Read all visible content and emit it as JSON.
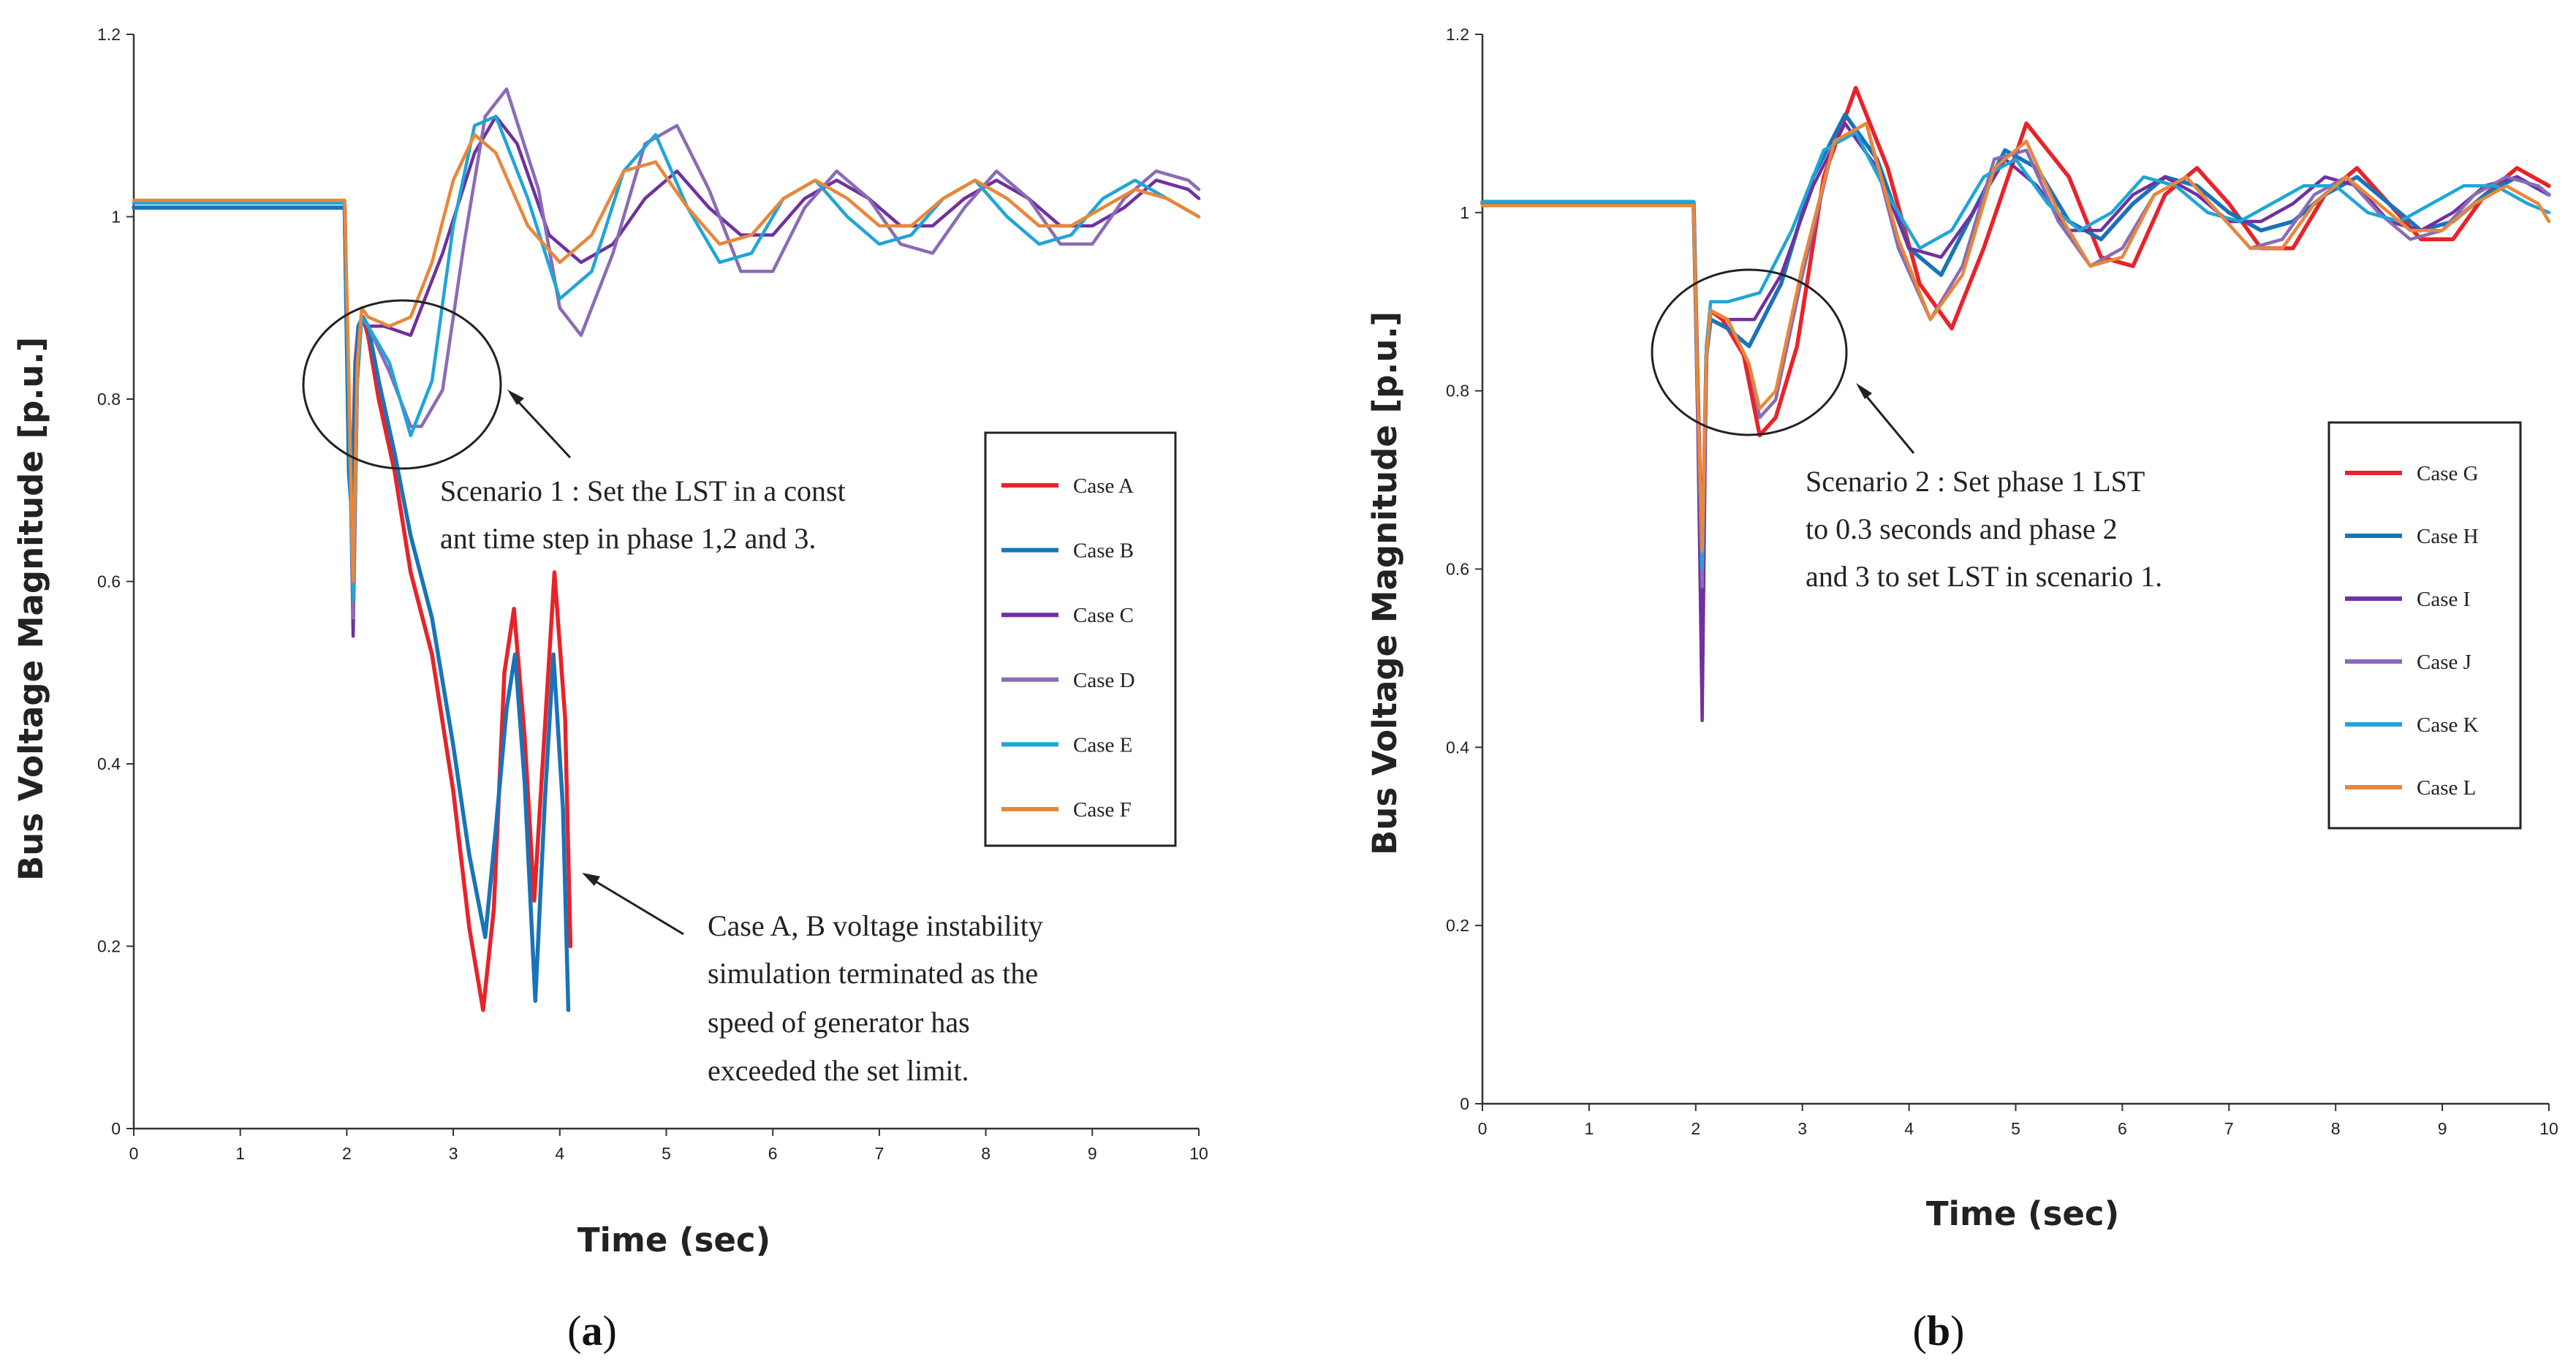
{
  "chart_data": [
    {
      "type": "line",
      "panel_label": "(a)",
      "panel_label_parts": [
        "(",
        "a",
        ")"
      ],
      "xlabel": "Time (sec)",
      "ylabel": "Bus Voltage Magnitude [p.u.]",
      "xlim": [
        0,
        10
      ],
      "ylim": [
        0,
        1.2
      ],
      "xticks": [
        0,
        1,
        2,
        3,
        4,
        5,
        6,
        7,
        8,
        9,
        10
      ],
      "yticks": [
        0,
        0.2,
        0.4,
        0.6,
        0.8,
        1,
        1.2
      ],
      "ytick_labels": [
        "0",
        "0.2",
        "0.4",
        "0.6",
        "0.8",
        "1",
        "1.2"
      ],
      "legend_position": "right",
      "series": [
        {
          "name": "Case A",
          "color": "#e8232a",
          "x": [
            0,
            1.98,
            2.02,
            2.05,
            2.08,
            2.11,
            2.15,
            2.2,
            2.3,
            2.45,
            2.6,
            2.8,
            3.0,
            3.15,
            3.28,
            3.38,
            3.48,
            3.57,
            3.67,
            3.76,
            3.85,
            3.95,
            4.05,
            4.1
          ],
          "y": [
            1.01,
            1.01,
            0.74,
            0.69,
            0.84,
            0.88,
            0.89,
            0.87,
            0.8,
            0.72,
            0.61,
            0.52,
            0.37,
            0.22,
            0.13,
            0.24,
            0.5,
            0.57,
            0.43,
            0.25,
            0.42,
            0.61,
            0.45,
            0.2
          ]
        },
        {
          "name": "Case B",
          "color": "#1a73b8",
          "x": [
            0,
            1.98,
            2.02,
            2.05,
            2.08,
            2.11,
            2.15,
            2.2,
            2.3,
            2.45,
            2.6,
            2.8,
            3.0,
            3.15,
            3.3,
            3.4,
            3.5,
            3.58,
            3.67,
            3.77,
            3.86,
            3.94,
            4.03,
            4.08
          ],
          "y": [
            1.01,
            1.01,
            0.72,
            0.67,
            0.83,
            0.88,
            0.89,
            0.88,
            0.82,
            0.74,
            0.65,
            0.56,
            0.42,
            0.3,
            0.21,
            0.33,
            0.46,
            0.52,
            0.38,
            0.14,
            0.36,
            0.52,
            0.35,
            0.13
          ]
        },
        {
          "name": "Case C",
          "color": "#7030a0",
          "x": [
            0,
            1.98,
            2.02,
            2.06,
            2.1,
            2.14,
            2.2,
            2.35,
            2.6,
            2.9,
            3.2,
            3.4,
            3.6,
            3.9,
            4.2,
            4.5,
            4.8,
            5.1,
            5.4,
            5.7,
            6.0,
            6.3,
            6.6,
            6.9,
            7.2,
            7.5,
            7.8,
            8.1,
            8.4,
            8.7,
            9.0,
            9.3,
            9.6,
            9.9,
            10.0
          ],
          "y": [
            1.015,
            1.015,
            0.8,
            0.54,
            0.82,
            0.89,
            0.88,
            0.88,
            0.87,
            0.96,
            1.07,
            1.11,
            1.08,
            0.98,
            0.95,
            0.97,
            1.02,
            1.05,
            1.01,
            0.98,
            0.98,
            1.02,
            1.04,
            1.02,
            0.99,
            0.99,
            1.02,
            1.04,
            1.02,
            0.99,
            0.99,
            1.01,
            1.04,
            1.03,
            1.02
          ]
        },
        {
          "name": "Case D",
          "color": "#8b6bb5",
          "x": [
            0,
            1.98,
            2.02,
            2.06,
            2.1,
            2.14,
            2.2,
            2.4,
            2.6,
            2.7,
            2.9,
            3.1,
            3.3,
            3.5,
            3.8,
            4.0,
            4.2,
            4.5,
            4.8,
            5.1,
            5.4,
            5.7,
            6.0,
            6.3,
            6.6,
            6.9,
            7.2,
            7.5,
            7.8,
            8.1,
            8.4,
            8.7,
            9.0,
            9.3,
            9.6,
            9.9,
            10.0
          ],
          "y": [
            1.015,
            1.015,
            0.8,
            0.56,
            0.82,
            0.89,
            0.88,
            0.83,
            0.77,
            0.77,
            0.81,
            0.97,
            1.11,
            1.14,
            1.03,
            0.9,
            0.87,
            0.96,
            1.08,
            1.1,
            1.03,
            0.94,
            0.94,
            1.01,
            1.05,
            1.02,
            0.97,
            0.96,
            1.01,
            1.05,
            1.02,
            0.97,
            0.97,
            1.02,
            1.05,
            1.04,
            1.03
          ]
        },
        {
          "name": "Case E",
          "color": "#1fa5d8",
          "x": [
            0,
            1.98,
            2.02,
            2.06,
            2.1,
            2.14,
            2.2,
            2.4,
            2.6,
            2.8,
            3.0,
            3.2,
            3.4,
            3.7,
            4.0,
            4.3,
            4.6,
            4.9,
            5.2,
            5.5,
            5.8,
            6.1,
            6.4,
            6.7,
            7.0,
            7.3,
            7.6,
            7.9,
            8.2,
            8.5,
            8.8,
            9.1,
            9.4,
            9.7,
            10.0
          ],
          "y": [
            1.015,
            1.015,
            0.78,
            0.58,
            0.82,
            0.89,
            0.88,
            0.84,
            0.76,
            0.82,
            0.99,
            1.1,
            1.11,
            1.02,
            0.91,
            0.94,
            1.05,
            1.09,
            1.01,
            0.95,
            0.96,
            1.02,
            1.04,
            1.0,
            0.97,
            0.98,
            1.02,
            1.04,
            1.0,
            0.97,
            0.98,
            1.02,
            1.04,
            1.02,
            1.0
          ]
        },
        {
          "name": "Case F",
          "color": "#e8873a",
          "x": [
            0,
            1.98,
            2.02,
            2.06,
            2.1,
            2.14,
            2.2,
            2.4,
            2.6,
            2.8,
            3.0,
            3.2,
            3.4,
            3.7,
            4.0,
            4.3,
            4.6,
            4.9,
            5.2,
            5.5,
            5.8,
            6.1,
            6.4,
            6.7,
            7.0,
            7.3,
            7.6,
            7.9,
            8.2,
            8.5,
            8.8,
            9.1,
            9.4,
            9.7,
            10.0
          ],
          "y": [
            1.018,
            1.018,
            0.82,
            0.6,
            0.84,
            0.9,
            0.89,
            0.88,
            0.89,
            0.95,
            1.04,
            1.09,
            1.07,
            0.99,
            0.95,
            0.98,
            1.05,
            1.06,
            1.01,
            0.97,
            0.98,
            1.02,
            1.04,
            1.02,
            0.99,
            0.99,
            1.02,
            1.04,
            1.02,
            0.99,
            0.99,
            1.01,
            1.03,
            1.02,
            1.0
          ]
        }
      ],
      "annotations": [
        {
          "text_lines": [
            "Scenario 1 : Set the LST in a const",
            "ant time step in phase 1,2 and 3."
          ]
        },
        {
          "text_lines": [
            "Case A, B voltage instability",
            "simulation terminated as the",
            "speed of generator has",
            "exceeded the set limit."
          ]
        }
      ]
    },
    {
      "type": "line",
      "panel_label": "(b)",
      "panel_label_parts": [
        "(",
        "b",
        ")"
      ],
      "xlabel": "Time (sec)",
      "ylabel": "Bus Voltage Magnitude [p.u.]",
      "xlim": [
        0,
        10
      ],
      "ylim": [
        0,
        1.2
      ],
      "xticks": [
        0,
        1,
        2,
        3,
        4,
        5,
        6,
        7,
        8,
        9,
        10
      ],
      "yticks": [
        0,
        0.2,
        0.4,
        0.6,
        0.8,
        1,
        1.2
      ],
      "ytick_labels": [
        "0",
        "0.2",
        "0.4",
        "0.6",
        "0.8",
        "1",
        "1.2"
      ],
      "legend_position": "right",
      "series": [
        {
          "name": "Case G",
          "color": "#e8232a",
          "x": [
            0,
            1.98,
            2.02,
            2.06,
            2.1,
            2.14,
            2.25,
            2.45,
            2.6,
            2.75,
            2.95,
            3.2,
            3.5,
            3.8,
            4.1,
            4.4,
            4.7,
            5.1,
            5.5,
            5.8,
            6.1,
            6.4,
            6.7,
            7.0,
            7.3,
            7.6,
            7.9,
            8.2,
            8.5,
            8.8,
            9.1,
            9.4,
            9.7,
            10.0
          ],
          "y": [
            1.01,
            1.01,
            0.8,
            0.6,
            0.84,
            0.89,
            0.88,
            0.84,
            0.75,
            0.77,
            0.85,
            1.04,
            1.14,
            1.05,
            0.92,
            0.87,
            0.96,
            1.1,
            1.04,
            0.95,
            0.94,
            1.02,
            1.05,
            1.01,
            0.96,
            0.96,
            1.02,
            1.05,
            1.01,
            0.97,
            0.97,
            1.02,
            1.05,
            1.03
          ]
        },
        {
          "name": "Case H",
          "color": "#1a73b8",
          "x": [
            0,
            1.98,
            2.02,
            2.06,
            2.1,
            2.14,
            2.3,
            2.5,
            2.8,
            3.1,
            3.4,
            3.7,
            4.0,
            4.3,
            4.6,
            4.9,
            5.2,
            5.5,
            5.8,
            6.1,
            6.4,
            6.7,
            7.0,
            7.3,
            7.6,
            7.9,
            8.2,
            8.5,
            8.8,
            9.1,
            9.4,
            9.7,
            10.0
          ],
          "y": [
            1.012,
            1.012,
            0.78,
            0.57,
            0.84,
            0.88,
            0.87,
            0.85,
            0.92,
            1.04,
            1.11,
            1.06,
            0.96,
            0.93,
            1.0,
            1.07,
            1.05,
            0.99,
            0.97,
            1.01,
            1.04,
            1.03,
            1.0,
            0.98,
            0.99,
            1.02,
            1.04,
            1.01,
            0.98,
            0.99,
            1.02,
            1.04,
            1.02
          ]
        },
        {
          "name": "Case I",
          "color": "#7030a0",
          "x": [
            0,
            1.98,
            2.02,
            2.06,
            2.1,
            2.14,
            2.3,
            2.55,
            2.8,
            3.1,
            3.4,
            3.7,
            4.0,
            4.3,
            4.6,
            4.9,
            5.2,
            5.5,
            5.8,
            6.1,
            6.4,
            6.7,
            7.0,
            7.3,
            7.6,
            7.9,
            8.2,
            8.5,
            8.8,
            9.1,
            9.4,
            9.7,
            10.0
          ],
          "y": [
            1.012,
            1.012,
            0.76,
            0.43,
            0.85,
            0.89,
            0.88,
            0.88,
            0.93,
            1.03,
            1.1,
            1.05,
            0.96,
            0.95,
            1.0,
            1.06,
            1.03,
            0.98,
            0.98,
            1.02,
            1.04,
            1.02,
            0.99,
            0.99,
            1.01,
            1.04,
            1.03,
            0.99,
            0.98,
            1.0,
            1.03,
            1.04,
            1.02
          ]
        },
        {
          "name": "Case J",
          "color": "#8b6bb5",
          "x": [
            0,
            1.98,
            2.02,
            2.06,
            2.1,
            2.14,
            2.3,
            2.5,
            2.6,
            2.75,
            3.0,
            3.3,
            3.6,
            3.9,
            4.2,
            4.5,
            4.8,
            5.1,
            5.4,
            5.7,
            6.0,
            6.3,
            6.6,
            6.9,
            7.2,
            7.5,
            7.8,
            8.1,
            8.4,
            8.7,
            9.0,
            9.3,
            9.6,
            9.9,
            10.0
          ],
          "y": [
            1.012,
            1.012,
            0.78,
            0.58,
            0.84,
            0.89,
            0.88,
            0.83,
            0.77,
            0.79,
            0.93,
            1.08,
            1.1,
            0.96,
            0.88,
            0.94,
            1.06,
            1.07,
            0.99,
            0.94,
            0.96,
            1.02,
            1.04,
            1.0,
            0.96,
            0.97,
            1.02,
            1.04,
            1.0,
            0.97,
            0.98,
            1.02,
            1.04,
            1.03,
            1.02
          ]
        },
        {
          "name": "Case K",
          "color": "#1fa5d8",
          "x": [
            0,
            1.98,
            2.02,
            2.06,
            2.1,
            2.14,
            2.3,
            2.6,
            2.9,
            3.2,
            3.5,
            3.8,
            4.1,
            4.4,
            4.7,
            5.0,
            5.3,
            5.6,
            5.9,
            6.2,
            6.5,
            6.8,
            7.1,
            7.4,
            7.7,
            8.0,
            8.3,
            8.6,
            8.9,
            9.2,
            9.5,
            9.8,
            10.0
          ],
          "y": [
            1.012,
            1.012,
            0.8,
            0.6,
            0.85,
            0.9,
            0.9,
            0.91,
            0.98,
            1.07,
            1.09,
            1.02,
            0.96,
            0.98,
            1.04,
            1.06,
            1.01,
            0.98,
            1.0,
            1.04,
            1.03,
            1.0,
            0.99,
            1.01,
            1.03,
            1.03,
            1.0,
            0.99,
            1.01,
            1.03,
            1.03,
            1.01,
            1.0
          ]
        },
        {
          "name": "Case L",
          "color": "#e8873a",
          "x": [
            0,
            1.98,
            2.02,
            2.06,
            2.1,
            2.14,
            2.3,
            2.5,
            2.6,
            2.75,
            3.0,
            3.3,
            3.6,
            3.9,
            4.2,
            4.5,
            4.8,
            5.1,
            5.4,
            5.7,
            6.0,
            6.3,
            6.6,
            6.9,
            7.2,
            7.5,
            7.8,
            8.1,
            8.4,
            8.7,
            9.0,
            9.3,
            9.6,
            9.9,
            10.0
          ],
          "y": [
            1.008,
            1.008,
            0.79,
            0.62,
            0.84,
            0.89,
            0.88,
            0.83,
            0.78,
            0.8,
            0.94,
            1.08,
            1.1,
            0.97,
            0.88,
            0.93,
            1.05,
            1.08,
            1.0,
            0.94,
            0.95,
            1.02,
            1.04,
            1.0,
            0.96,
            0.96,
            1.01,
            1.04,
            1.01,
            0.98,
            0.98,
            1.01,
            1.03,
            1.01,
            0.99
          ]
        }
      ],
      "annotations": [
        {
          "text_lines": [
            "Scenario 2 : Set phase 1 LST",
            "to 0.3 seconds and phase 2",
            "and 3 to set LST in scenario 1."
          ]
        }
      ]
    }
  ]
}
